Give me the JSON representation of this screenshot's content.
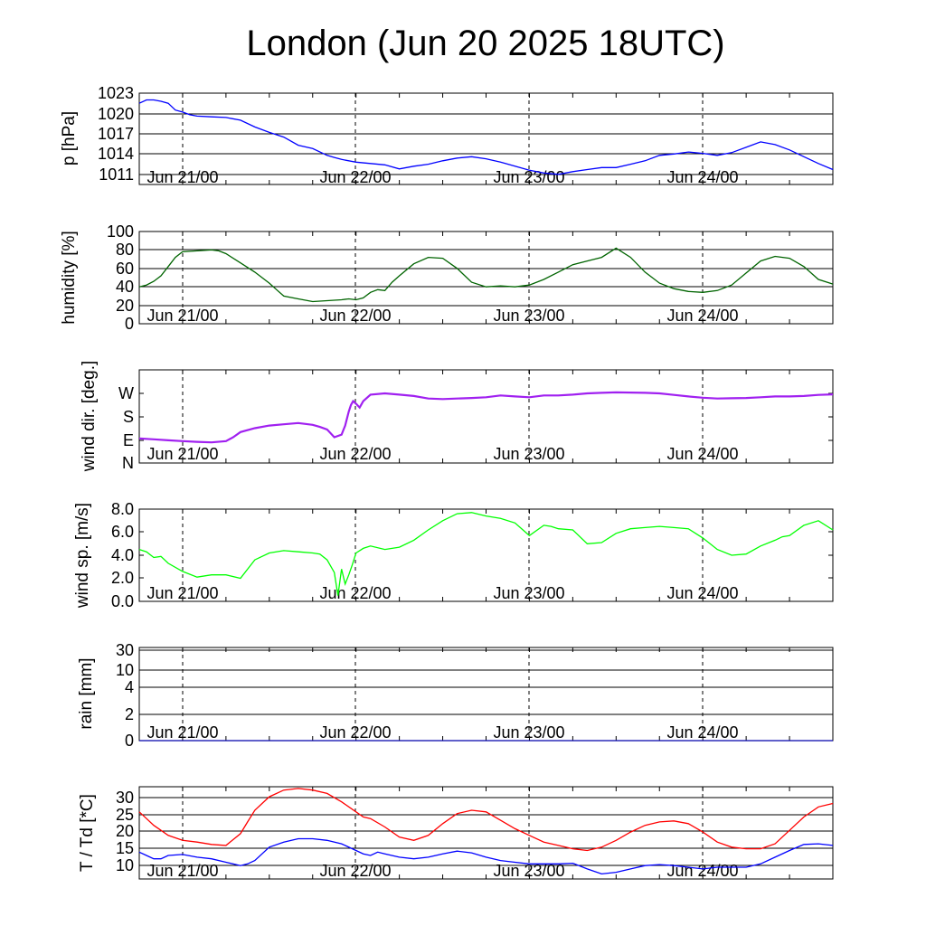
{
  "title": "London (Jun 20 2025 18UTC)",
  "x_tick_labels": [
    "Jun 21/00",
    "Jun 22/00",
    "Jun 23/00",
    "Jun 24/00"
  ],
  "chart_data": [
    {
      "type": "line",
      "ylabel": "p [hPa]",
      "yticks": [
        "1023",
        "1020",
        "1017",
        "1014",
        "1011"
      ],
      "ylim": [
        1009.5,
        1023
      ],
      "x_unit": "hours since Jun 20 18UTC",
      "xlim": [
        0,
        96
      ],
      "grid": true,
      "series": [
        {
          "color": "#0000ff",
          "x": [
            0,
            1,
            2,
            3,
            4,
            5,
            6,
            7,
            8,
            10,
            12,
            14,
            16,
            18,
            20,
            22,
            24,
            26,
            27,
            28,
            30,
            32,
            34,
            36,
            38,
            40,
            42,
            44,
            46,
            48,
            50,
            52,
            54,
            56,
            58,
            60,
            62,
            64,
            66,
            68,
            70,
            72,
            74,
            76,
            78,
            80,
            82,
            84,
            86,
            88,
            90,
            92,
            94,
            96
          ],
          "y": [
            1021.5,
            1022,
            1022,
            1021.8,
            1021.5,
            1020.5,
            1020.2,
            1019.8,
            1019.6,
            1019.5,
            1019.4,
            1019,
            1018,
            1017.2,
            1016.5,
            1015.3,
            1014.8,
            1013.8,
            1013.5,
            1013.2,
            1012.8,
            1012.6,
            1012.4,
            1011.8,
            1012.2,
            1012.5,
            1013,
            1013.4,
            1013.6,
            1013.3,
            1012.8,
            1012.2,
            1011.6,
            1011.2,
            1011,
            1011.4,
            1011.7,
            1012,
            1012,
            1012.5,
            1013,
            1013.8,
            1014,
            1014.3,
            1014.1,
            1013.8,
            1014.2,
            1015,
            1015.8,
            1015.4,
            1014.6,
            1013.6,
            1012.6,
            1011.7
          ]
        }
      ]
    },
    {
      "type": "line",
      "ylabel": "humidity [%]",
      "yticks": [
        "100",
        "80",
        "60",
        "40",
        "20",
        "0"
      ],
      "ylim": [
        0,
        100
      ],
      "xlim": [
        0,
        96
      ],
      "grid": true,
      "series": [
        {
          "color": "#006400",
          "x": [
            0,
            1,
            2,
            3,
            4,
            5,
            6,
            8,
            10,
            11,
            12,
            14,
            16,
            18,
            19,
            20,
            22,
            24,
            26,
            28,
            29,
            30,
            31,
            32,
            33,
            34,
            35,
            36,
            38,
            40,
            42,
            44,
            46,
            48,
            50,
            52,
            54,
            56,
            58,
            60,
            62,
            64,
            66,
            68,
            70,
            72,
            74,
            76,
            78,
            80,
            82,
            84,
            86,
            88,
            90,
            92,
            94,
            96
          ],
          "y": [
            40,
            42,
            46,
            52,
            62,
            72,
            78,
            79,
            80,
            79,
            76,
            66,
            56,
            44,
            37,
            30,
            27,
            24,
            25,
            26,
            27,
            26,
            28,
            34,
            37,
            36,
            45,
            52,
            65,
            72,
            71,
            60,
            45,
            40,
            41,
            40,
            42,
            48,
            56,
            64,
            68,
            72,
            82,
            72,
            56,
            44,
            38,
            35,
            34,
            36,
            42,
            55,
            68,
            73,
            71,
            62,
            48,
            43
          ]
        }
      ]
    },
    {
      "type": "line",
      "ylabel": "wind dir. [deg.]",
      "yticks": [
        "W",
        "S",
        "E",
        "N"
      ],
      "ytick_values": [
        270,
        180,
        90,
        0
      ],
      "ylim": [
        0,
        360
      ],
      "xlim": [
        0,
        96
      ],
      "grid": false,
      "series": [
        {
          "color": "#a020f0",
          "x": [
            0,
            2,
            4,
            6,
            8,
            10,
            12,
            13,
            14,
            16,
            18,
            20,
            22,
            24,
            25,
            26,
            27,
            28,
            28.5,
            29,
            29.3,
            29.6,
            30,
            30.5,
            31,
            32,
            34,
            36,
            38,
            40,
            42,
            44,
            46,
            48,
            50,
            52,
            54,
            56,
            58,
            60,
            62,
            64,
            66,
            68,
            70,
            72,
            74,
            76,
            78,
            80,
            82,
            84,
            86,
            88,
            90,
            92,
            94,
            96
          ],
          "y": [
            95,
            92,
            88,
            85,
            82,
            80,
            85,
            100,
            120,
            135,
            145,
            150,
            155,
            148,
            140,
            130,
            100,
            110,
            145,
            200,
            225,
            240,
            230,
            215,
            240,
            265,
            270,
            265,
            260,
            250,
            248,
            250,
            252,
            255,
            262,
            258,
            255,
            262,
            262,
            265,
            270,
            272,
            274,
            273,
            272,
            270,
            264,
            258,
            253,
            250,
            251,
            252,
            255,
            258,
            258,
            260,
            264,
            266
          ]
        }
      ]
    },
    {
      "type": "line",
      "ylabel": "wind sp. [m/s]",
      "yticks": [
        "8.0",
        "6.0",
        "4.0",
        "2.0",
        "0.0"
      ],
      "ylim": [
        0,
        8
      ],
      "xlim": [
        0,
        96
      ],
      "grid": false,
      "series": [
        {
          "color": "#00ff00",
          "x": [
            0,
            1,
            2,
            3,
            4,
            6,
            8,
            10,
            12,
            14,
            16,
            18,
            20,
            22,
            24,
            25,
            26,
            27,
            27.5,
            28,
            28.5,
            29,
            29.5,
            30,
            31,
            32,
            34,
            36,
            38,
            40,
            42,
            44,
            46,
            48,
            50,
            52,
            54,
            56,
            57,
            58,
            60,
            62,
            64,
            66,
            68,
            70,
            72,
            74,
            76,
            78,
            80,
            82,
            84,
            86,
            88,
            89,
            90,
            92,
            94,
            96
          ],
          "y": [
            4.5,
            4.3,
            3.8,
            3.9,
            3.3,
            2.6,
            2.1,
            2.3,
            2.3,
            2.0,
            3.6,
            4.2,
            4.4,
            4.3,
            4.2,
            4.1,
            3.6,
            2.5,
            0.5,
            2.8,
            1.5,
            2.3,
            3.2,
            4.2,
            4.6,
            4.8,
            4.5,
            4.7,
            5.3,
            6.2,
            7.0,
            7.6,
            7.7,
            7.4,
            7.2,
            6.8,
            5.7,
            6.6,
            6.5,
            6.3,
            6.2,
            5.0,
            5.1,
            5.9,
            6.3,
            6.4,
            6.5,
            6.4,
            6.3,
            5.5,
            4.5,
            4.0,
            4.1,
            4.8,
            5.3,
            5.6,
            5.7,
            6.6,
            7.0,
            6.2
          ]
        }
      ]
    },
    {
      "type": "line",
      "ylabel": "rain [mm]",
      "yticks": [
        "30",
        "10",
        "4",
        "2",
        "0"
      ],
      "ytick_values": [
        30,
        10,
        4,
        2,
        0
      ],
      "ylim": [
        0,
        30
      ],
      "xlim": [
        0,
        96
      ],
      "grid": true,
      "series": [
        {
          "color": "#0000aa",
          "x": [
            0,
            96
          ],
          "y": [
            0,
            0
          ]
        }
      ]
    },
    {
      "type": "line",
      "ylabel": "T / Td [*C]",
      "yticks": [
        "30",
        "25",
        "20",
        "15",
        "10"
      ],
      "ylim": [
        5.5,
        33
      ],
      "xlim": [
        0,
        96
      ],
      "grid": true,
      "series": [
        {
          "color": "#ff0000",
          "x": [
            0,
            1,
            2,
            3,
            4,
            6,
            8,
            10,
            12,
            14,
            15,
            16,
            18,
            20,
            22,
            24,
            26,
            28,
            30,
            31,
            32,
            34,
            36,
            38,
            40,
            42,
            44,
            46,
            48,
            50,
            52,
            54,
            56,
            58,
            60,
            62,
            64,
            66,
            68,
            70,
            72,
            74,
            76,
            78,
            80,
            82,
            84,
            86,
            88,
            90,
            92,
            94,
            96
          ],
          "y": [
            25.5,
            23.5,
            21.5,
            20,
            18.5,
            17,
            16.5,
            15.8,
            15.5,
            19,
            22.5,
            26,
            30,
            32,
            32.5,
            32,
            31,
            28.5,
            25.5,
            24,
            23.5,
            21,
            18,
            17,
            18.5,
            22,
            25,
            26,
            25.5,
            23,
            20.5,
            18.5,
            16.5,
            15.5,
            14.5,
            14,
            15,
            17,
            19.5,
            21.5,
            22.5,
            22.8,
            22,
            19.5,
            16.5,
            15,
            14.5,
            14.5,
            16,
            20,
            24,
            27,
            28
          ]
        },
        {
          "color": "#0000ff",
          "x": [
            0,
            1,
            2,
            3,
            4,
            6,
            8,
            10,
            12,
            14,
            15,
            16,
            18,
            20,
            22,
            24,
            26,
            28,
            30,
            31,
            32,
            33,
            34,
            36,
            38,
            40,
            42,
            44,
            46,
            48,
            50,
            52,
            54,
            56,
            58,
            60,
            62,
            64,
            66,
            68,
            70,
            72,
            74,
            76,
            78,
            80,
            82,
            84,
            86,
            88,
            90,
            92,
            94,
            96
          ],
          "y": [
            13.5,
            12.5,
            11.5,
            11.5,
            12.5,
            12.8,
            12,
            11.5,
            10.5,
            9.5,
            10,
            11,
            15,
            16.5,
            17.5,
            17.5,
            17,
            16,
            14,
            13,
            12.5,
            13.5,
            13,
            12,
            11.5,
            12,
            13,
            13.8,
            13.3,
            12,
            11,
            10.5,
            10,
            10,
            10,
            10.2,
            8.5,
            7,
            7.5,
            8.5,
            9.5,
            9.8,
            9.5,
            9,
            8.5,
            9,
            9,
            9,
            10,
            12,
            14,
            15.8,
            16,
            15.5
          ]
        }
      ]
    }
  ]
}
